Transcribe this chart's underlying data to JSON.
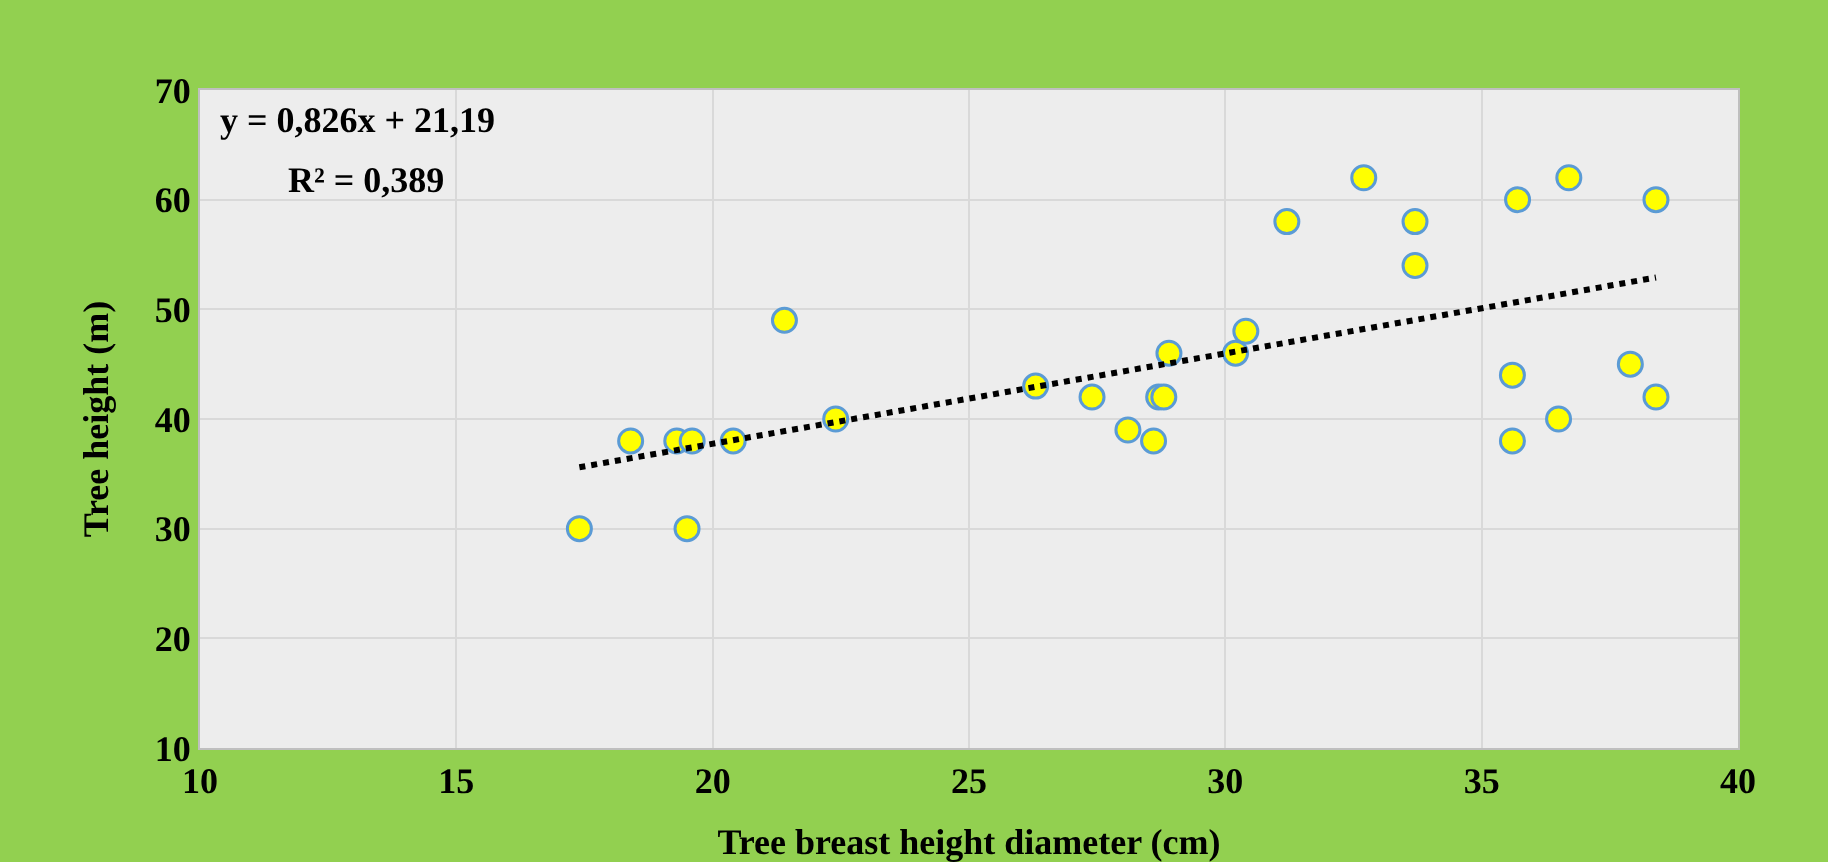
{
  "chart_data": {
    "type": "scatter",
    "xlabel": "Tree breast height diameter (cm)",
    "ylabel": "Tree height (m)",
    "annotations": [
      "y = 0,826x + 21,19",
      "R² = 0,389"
    ],
    "series": [
      {
        "color": "#ffff00",
        "marker": "circle",
        "x": [
          17.4,
          18.4,
          19.3,
          19.6,
          19.5,
          20.4,
          21.4,
          22.4,
          26.3,
          27.4,
          28.1,
          28.6,
          28.7,
          28.8,
          28.9,
          30.2,
          30.4,
          31.2,
          32.7,
          33.7,
          33.7,
          35.6,
          35.6,
          35.7,
          36.5,
          36.7,
          37.9,
          38.4,
          38.4
        ],
        "values": [
          30,
          38,
          38,
          38,
          30,
          38,
          49,
          40,
          43,
          42,
          39,
          38,
          42,
          42,
          46,
          46,
          48,
          58,
          62,
          58,
          54,
          44,
          38,
          60,
          40,
          62,
          45,
          60,
          42
        ]
      },
      {
        "type": "line",
        "color": "#000000",
        "line_style": "dotted",
        "x": [
          17.4,
          38.4
        ],
        "values": [
          35.6,
          52.9
        ]
      }
    ],
    "xlim": [
      10,
      40
    ],
    "xticks": [
      10,
      15,
      20,
      25,
      30,
      35,
      40
    ],
    "ylim": [
      10,
      70
    ],
    "yticks": [
      10,
      20,
      30,
      40,
      50,
      60,
      70
    ],
    "grid": true,
    "legend": false
  }
}
